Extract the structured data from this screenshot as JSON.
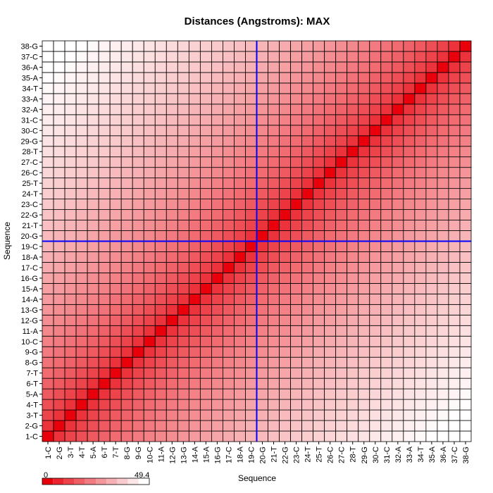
{
  "chart_data": {
    "type": "heatmap",
    "title": "Distances (Angstroms):  MAX",
    "xlabel": "Sequence",
    "ylabel": "Sequence",
    "labels": [
      "1-C",
      "2-G",
      "3-T",
      "4-T",
      "5-A",
      "6-T",
      "7-T",
      "8-G",
      "9-G",
      "10-C",
      "11-A",
      "12-G",
      "13-G",
      "14-A",
      "15-A",
      "16-G",
      "17-C",
      "18-A",
      "19-C",
      "20-G",
      "21-T",
      "22-G",
      "23-C",
      "24-T",
      "25-T",
      "26-C",
      "27-C",
      "28-T",
      "29-G",
      "30-C",
      "31-C",
      "32-A",
      "33-A",
      "34-T",
      "35-A",
      "36-A",
      "37-C",
      "38-G"
    ],
    "value_range": [
      0,
      49.4
    ],
    "legend": {
      "min_label": "0",
      "max_label": "49.4",
      "position": "bottom-left"
    },
    "crosshair": {
      "x": "19-C",
      "y": "19-C"
    },
    "values_note": "Pairwise distance approximated by |i-j| spacing along the helix; low distance = dark red, high = white",
    "colors": {
      "low": "#e8000b",
      "high": "#ffffff",
      "crosshair": "#0000ff",
      "grid": "#000000"
    }
  }
}
